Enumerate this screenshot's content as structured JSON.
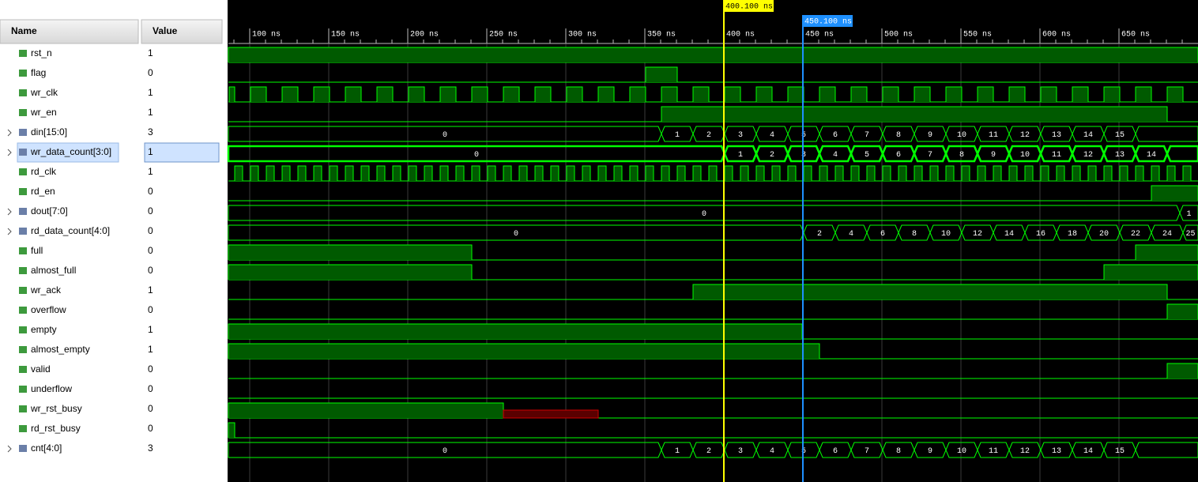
{
  "header": {
    "name": "Name",
    "value": "Value"
  },
  "signals": [
    {
      "name": "rst_n",
      "value": "1"
    },
    {
      "name": "flag",
      "value": "0"
    },
    {
      "name": "wr_clk",
      "value": "1"
    },
    {
      "name": "wr_en",
      "value": "1"
    },
    {
      "name": "din[15:0]",
      "value": "3",
      "segments": [
        "0",
        "1",
        "2",
        "3",
        "4",
        "5",
        "6",
        "7",
        "8",
        "9",
        "10",
        "11",
        "12",
        "13",
        "14",
        "15"
      ]
    },
    {
      "name": "wr_data_count[3:0]",
      "value": "1",
      "segments": [
        "0",
        "1",
        "2",
        "3",
        "4",
        "5",
        "6",
        "7",
        "8",
        "9",
        "10",
        "11",
        "12",
        "13",
        "14"
      ]
    },
    {
      "name": "rd_clk",
      "value": "1"
    },
    {
      "name": "rd_en",
      "value": "0"
    },
    {
      "name": "dout[7:0]",
      "value": "0",
      "segments": [
        "0",
        "1"
      ]
    },
    {
      "name": "rd_data_count[4:0]",
      "value": "0",
      "segments": [
        "0",
        "2",
        "4",
        "6",
        "8",
        "10",
        "12",
        "14",
        "16",
        "18",
        "20",
        "22",
        "24",
        "25"
      ]
    },
    {
      "name": "full",
      "value": "0"
    },
    {
      "name": "almost_full",
      "value": "0"
    },
    {
      "name": "wr_ack",
      "value": "1"
    },
    {
      "name": "overflow",
      "value": "0"
    },
    {
      "name": "empty",
      "value": "1"
    },
    {
      "name": "almost_empty",
      "value": "1"
    },
    {
      "name": "valid",
      "value": "0"
    },
    {
      "name": "underflow",
      "value": "0"
    },
    {
      "name": "wr_rst_busy",
      "value": "0"
    },
    {
      "name": "rd_rst_busy",
      "value": "0"
    },
    {
      "name": "cnt[4:0]",
      "value": "3",
      "segments": [
        "0",
        "1",
        "2",
        "3",
        "4",
        "5",
        "6",
        "7",
        "8",
        "9",
        "10",
        "11",
        "12",
        "13",
        "14",
        "15"
      ]
    }
  ],
  "timeline": {
    "ticks": [
      "100 ns",
      "150 ns",
      "200 ns",
      "250 ns",
      "300 ns",
      "350 ns",
      "400 ns",
      "450 ns",
      "500 ns",
      "550 ns",
      "600 ns",
      "650 ns"
    ],
    "cursors": [
      "400.100 ns",
      "450.100 ns"
    ]
  }
}
